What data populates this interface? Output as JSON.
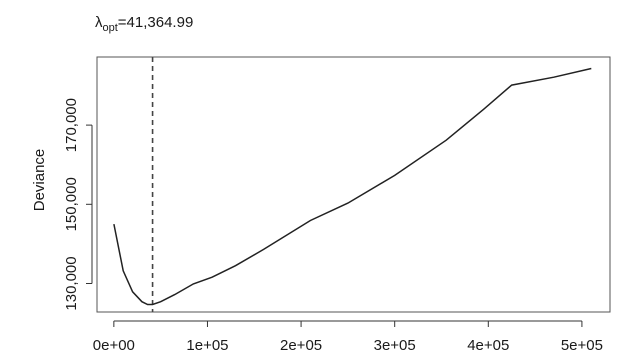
{
  "chart_data": {
    "type": "line",
    "title": "",
    "xlabel": "",
    "ylabel": "Deviance",
    "annotation": {
      "lambda_symbol": "λ",
      "subscript": "opt",
      "equals_value": "=41,364.99",
      "x": 41364.99
    },
    "xlim": [
      -18000,
      530000
    ],
    "ylim": [
      122800,
      187200
    ],
    "x_ticks": [
      0,
      100000,
      200000,
      300000,
      400000,
      500000
    ],
    "x_tick_labels": [
      "0e+00",
      "1e+05",
      "2e+05",
      "3e+05",
      "4e+05",
      "5e+05"
    ],
    "y_ticks": [
      130000,
      150000,
      170000
    ],
    "y_tick_labels": [
      "130,000",
      "150,000",
      "170,000"
    ],
    "grid": false,
    "legend": "none",
    "series": [
      {
        "x": [
          0,
          10000,
          20000,
          30000,
          36000,
          41365,
          50000,
          65000,
          85000,
          105000,
          130000,
          160000,
          210000,
          250000,
          300000,
          355000,
          395000,
          425000,
          470000,
          510000
        ],
        "y": [
          145000,
          133200,
          127900,
          125400,
          124700,
          124700,
          125400,
          127200,
          129900,
          131600,
          134500,
          138600,
          145900,
          150300,
          157300,
          166200,
          174000,
          180100,
          182100,
          184300
        ]
      }
    ],
    "colors": {
      "line": "#222222",
      "frame": "#555555",
      "vline": "#444444"
    }
  }
}
